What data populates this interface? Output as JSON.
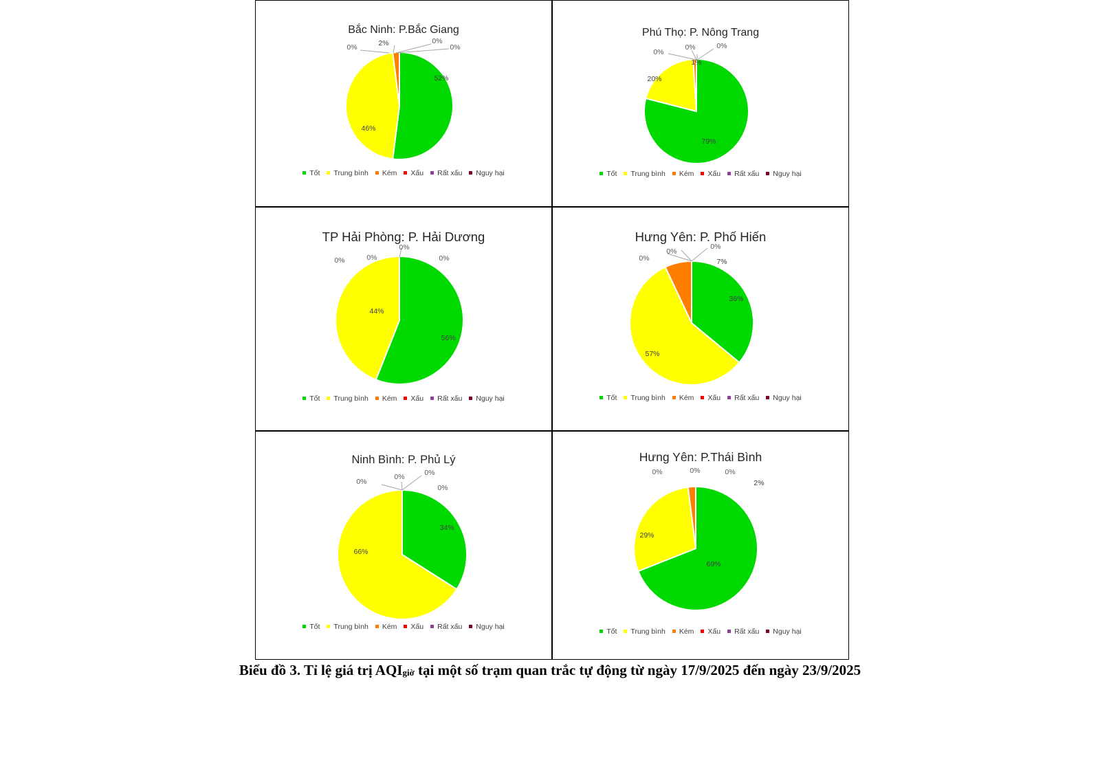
{
  "categories": [
    "Tốt",
    "Trung bình",
    "Kém",
    "Xấu",
    "Rất xấu",
    "Nguy hại"
  ],
  "colors": [
    "#00d900",
    "#ffff00",
    "#ff7e00",
    "#ff0000",
    "#8f3f97",
    "#7e0023"
  ],
  "chart_data": [
    {
      "type": "pie",
      "title": "Bắc Ninh: P.Bắc Giang",
      "categories": [
        "Tốt",
        "Trung bình",
        "Kém",
        "Xấu",
        "Rất xấu",
        "Nguy hại"
      ],
      "values": [
        52,
        46,
        2,
        0,
        0,
        0
      ],
      "labels": [
        "52%",
        "46%",
        "2%",
        "0%",
        "0%",
        "0%"
      ],
      "legend": "bottom"
    },
    {
      "type": "pie",
      "title": "Phú Thọ: P. Nông Trang",
      "categories": [
        "Tốt",
        "Trung bình",
        "Kém",
        "Xấu",
        "Rất xấu",
        "Nguy hại"
      ],
      "values": [
        79,
        20,
        1,
        0,
        0,
        0
      ],
      "labels": [
        "79%",
        "20%",
        "1%",
        "0%",
        "0%",
        "0%"
      ],
      "legend": "bottom"
    },
    {
      "type": "pie",
      "title": "TP Hải Phòng: P. Hải Dương",
      "categories": [
        "Tốt",
        "Trung bình",
        "Kém",
        "Xấu",
        "Rất xấu",
        "Nguy hại"
      ],
      "values": [
        56,
        44,
        0,
        0,
        0,
        0
      ],
      "labels": [
        "56%",
        "44%",
        "0%",
        "0%",
        "0%",
        "0%"
      ],
      "legend": "bottom"
    },
    {
      "type": "pie",
      "title": "Hưng Yên: P. Phố Hiến",
      "categories": [
        "Tốt",
        "Trung bình",
        "Kém",
        "Xấu",
        "Rất xấu",
        "Nguy hại"
      ],
      "values": [
        36,
        57,
        7,
        0,
        0,
        0
      ],
      "labels": [
        "36%",
        "57%",
        "7%",
        "0%",
        "0%",
        "0%"
      ],
      "legend": "bottom"
    },
    {
      "type": "pie",
      "title": "Ninh Bình: P. Phủ Lý",
      "categories": [
        "Tốt",
        "Trung bình",
        "Kém",
        "Xấu",
        "Rất xấu",
        "Nguy hại"
      ],
      "values": [
        34,
        66,
        0,
        0,
        0,
        0
      ],
      "labels": [
        "34%",
        "66%",
        "0%",
        "0%",
        "0%",
        "0%"
      ],
      "legend": "bottom"
    },
    {
      "type": "pie",
      "title": "Hưng Yên: P.Thái Bình",
      "categories": [
        "Tốt",
        "Trung bình",
        "Kém",
        "Xấu",
        "Rất xấu",
        "Nguy hại"
      ],
      "values": [
        69,
        29,
        2,
        0,
        0,
        0
      ],
      "labels": [
        "69%",
        "29%",
        "2%",
        "0%",
        "0%",
        "0%"
      ],
      "legend": "bottom"
    }
  ],
  "caption": {
    "prefix": "Biểu đồ 3.  Tỉ lệ giá trị AQI",
    "sub": "giờ",
    "suffix": " tại một số trạm quan trắc tự động từ ngày 17/9/2025 đến ngày 23/9/2025"
  }
}
